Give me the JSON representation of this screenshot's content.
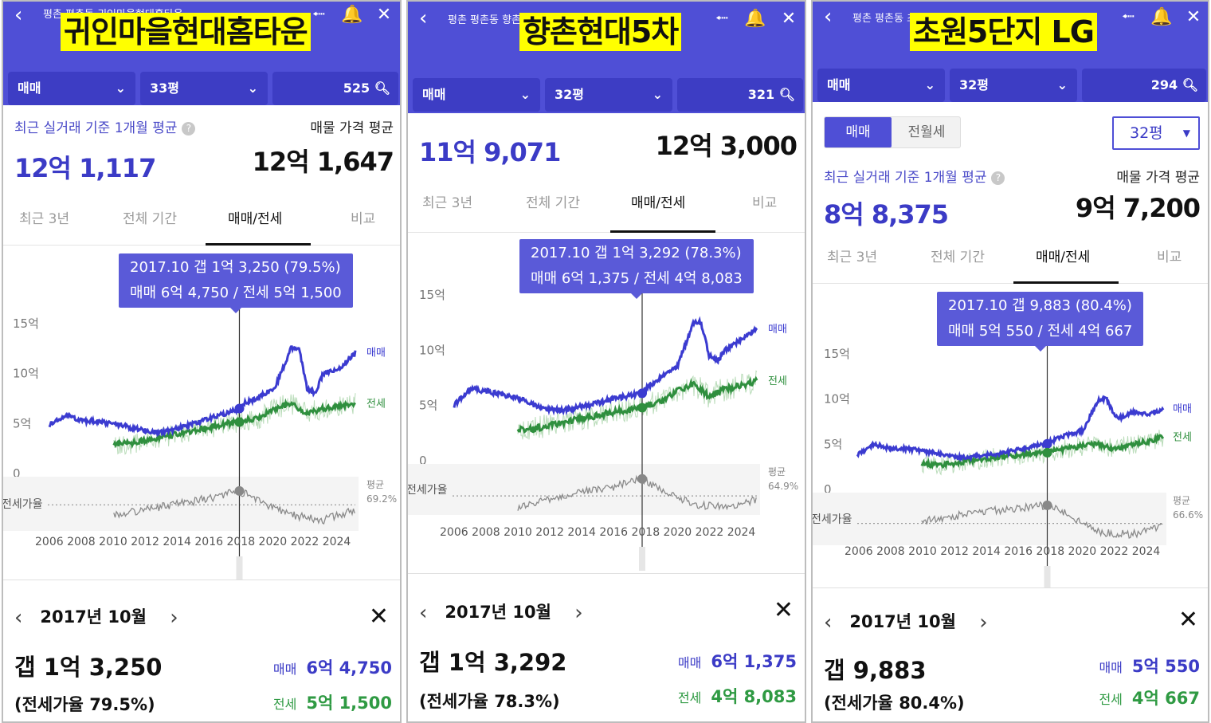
{
  "panels": [
    {
      "breadcrumb": "평촌 평촌동 귀인마을현대홈타운",
      "title": "귀인마을현대홈타운",
      "deal_type": "매매",
      "area": "33평",
      "listings": "525",
      "recent_label": "최근 실거래 기준 1개월 평균",
      "recent_value": "12억 1,117",
      "ask_label": "매물 가격 평균",
      "ask_value": "12억 1,647",
      "tabs": [
        "최근 3년",
        "전체 기간",
        "매매/전세",
        "비교"
      ],
      "tooltip_line1": "2017.10  갭 1억 3,250 (79.5%)",
      "tooltip_line2": "매매 6억 4,750 / 전세 5억 1,500",
      "y_ticks": [
        "15억",
        "10억",
        "5억",
        "0"
      ],
      "ratio_label": "전세가율",
      "series_buy": "매매",
      "series_rent": "전세",
      "avg_label": "평균",
      "avg_value": "69.2%",
      "x_ticks": "2006 2008 2010 2012 2014 2016 2018 2020 2022 2024",
      "month": "2017년 10월",
      "gap": "갭 1억 3,250",
      "gap_ratio": "(전세가율 79.5%)",
      "buy_label": "매매",
      "buy_value": "6억 4,750",
      "rent_label": "전세",
      "rent_value": "5억 1,500"
    },
    {
      "breadcrumb": "평촌 평촌동 향촌현대5차",
      "title": "향촌현대5차",
      "deal_type": "매매",
      "area": "32평",
      "listings": "321",
      "recent_value": "11억 9,071",
      "ask_value": "12억 3,000",
      "tabs": [
        "최근 3년",
        "전체 기간",
        "매매/전세",
        "비교"
      ],
      "tooltip_line1": "2017.10  갭 1억 3,292 (78.3%)",
      "tooltip_line2": "매매 6억 1,375 / 전세 4억 8,083",
      "y_ticks": [
        "15억",
        "10억",
        "5억",
        "0"
      ],
      "ratio_label": "전세가율",
      "series_buy": "매매",
      "series_rent": "전세",
      "avg_label": "평균",
      "avg_value": "64.9%",
      "x_ticks": "2006 2008 2010 2012 2014 2016 2018 2020 2022 2024",
      "month": "2017년 10월",
      "gap": "갭 1억 3,292",
      "gap_ratio": "(전세가율 78.3%)",
      "buy_label": "매매",
      "buy_value": "6억 1,375",
      "rent_label": "전세",
      "rent_value": "4억 8,083"
    },
    {
      "breadcrumb": "평촌 평촌동 초원5단지LG",
      "title": "초원5단지 LG",
      "deal_type": "매매",
      "area": "32평",
      "listings": "294",
      "seg_buy": "매매",
      "seg_rent": "전월세",
      "area_dropdown": "32평",
      "recent_label": "최근 실거래 기준 1개월 평균",
      "recent_value": "8억 8,375",
      "ask_label": "매물 가격 평균",
      "ask_value": "9억 7,200",
      "tabs": [
        "최근 3년",
        "전체 기간",
        "매매/전세",
        "비교"
      ],
      "tooltip_line1": "2017.10  갭 9,883 (80.4%)",
      "tooltip_line2": "매매 5억 550 / 전세 4억 667",
      "y_ticks": [
        "15억",
        "10억",
        "5억",
        "0"
      ],
      "ratio_label": "전세가율",
      "series_buy": "매매",
      "series_rent": "전세",
      "avg_label": "평균",
      "avg_value": "66.6%",
      "x_ticks": "2006 2008 2010 2012 2014 2016 2018 2020 2022 2024",
      "month": "2017년 10월",
      "gap": "갭 9,883",
      "gap_ratio": "(전세가율 80.4%)",
      "buy_label": "매매",
      "buy_value": "5억 550",
      "rent_label": "전세",
      "rent_value": "4억 667"
    }
  ],
  "colors": {
    "header": "#4f4fd6",
    "buy": "#3b3bd0",
    "rent": "#2f8f3e",
    "ratio": "#8a8a8a",
    "highlight": "#ffff00"
  },
  "icons": [
    "back-icon",
    "share-icon",
    "bell-icon",
    "close-icon",
    "search-icon",
    "chevron-down-icon",
    "help-icon"
  ],
  "chart_data": [
    {
      "type": "line",
      "x_range": [
        2006,
        2025
      ],
      "ylim": [
        0,
        15
      ],
      "y_unit": "억",
      "series": [
        {
          "name": "매매",
          "x": [
            2006,
            2007,
            2008,
            2009,
            2010,
            2011,
            2012,
            2013,
            2014,
            2015,
            2016,
            2017,
            2017.8,
            2018,
            2019,
            2020,
            2020.5,
            2021,
            2021.5,
            2022,
            2022.5,
            2023,
            2024,
            2025
          ],
          "values": [
            4.8,
            5.8,
            5.3,
            5.2,
            5.0,
            4.6,
            4.3,
            4.1,
            4.5,
            5.0,
            5.6,
            6.0,
            6.5,
            7.0,
            7.6,
            8.6,
            10.5,
            12.5,
            12.5,
            8.5,
            8.0,
            10.0,
            10.5,
            12.1
          ]
        },
        {
          "name": "전세",
          "x": [
            2010,
            2011,
            2012,
            2013,
            2014,
            2015,
            2016,
            2017,
            2017.8,
            2018,
            2019,
            2020,
            2021,
            2022,
            2023,
            2024,
            2025
          ],
          "values": [
            3.0,
            3.0,
            3.3,
            3.6,
            4.0,
            4.3,
            4.6,
            5.0,
            5.15,
            5.3,
            5.5,
            6.5,
            7.0,
            6.0,
            6.5,
            6.8,
            7.0
          ]
        }
      ],
      "ratio_series": {
        "name": "전세가율",
        "x": [
          2010,
          2012,
          2014,
          2016,
          2017.8,
          2019,
          2021,
          2023,
          2025
        ],
        "values": [
          62,
          66,
          70,
          74,
          79.5,
          72,
          62,
          58,
          66
        ]
      },
      "ratio_average": 69.2
    },
    {
      "type": "line",
      "x_range": [
        2006,
        2025
      ],
      "ylim": [
        0,
        15
      ],
      "y_unit": "억",
      "series": [
        {
          "name": "매매",
          "x": [
            2006,
            2007,
            2008,
            2009,
            2010,
            2011,
            2012,
            2013,
            2014,
            2015,
            2016,
            2017,
            2017.8,
            2018,
            2019,
            2020,
            2021,
            2021.5,
            2022,
            2022.5,
            2023,
            2024,
            2025
          ],
          "values": [
            5.0,
            6.5,
            6.3,
            6.0,
            5.7,
            5.0,
            4.6,
            4.6,
            4.9,
            5.2,
            5.6,
            5.9,
            6.1,
            6.5,
            7.5,
            8.5,
            12.5,
            12.5,
            9.5,
            9.0,
            10.0,
            11.0,
            11.9
          ]
        },
        {
          "name": "전세",
          "x": [
            2010,
            2011,
            2012,
            2013,
            2014,
            2015,
            2016,
            2017,
            2017.8,
            2018,
            2019,
            2020,
            2021,
            2022,
            2023,
            2024,
            2025
          ],
          "values": [
            2.8,
            2.9,
            3.2,
            3.5,
            3.8,
            4.1,
            4.4,
            4.6,
            4.8,
            5.0,
            5.3,
            6.3,
            7.0,
            5.8,
            6.5,
            6.8,
            7.2
          ]
        }
      ],
      "ratio_series": {
        "name": "전세가율",
        "x": [
          2010,
          2012,
          2014,
          2016,
          2017.8,
          2019,
          2021,
          2023,
          2025
        ],
        "values": [
          56,
          62,
          68,
          72,
          78.3,
          70,
          58,
          56,
          62
        ]
      },
      "ratio_average": 64.9
    },
    {
      "type": "line",
      "x_range": [
        2006,
        2025
      ],
      "ylim": [
        0,
        15
      ],
      "y_unit": "억",
      "series": [
        {
          "name": "매매",
          "x": [
            2006,
            2007,
            2008,
            2009,
            2010,
            2011,
            2012,
            2013,
            2014,
            2015,
            2016,
            2017,
            2017.8,
            2018,
            2019,
            2020,
            2021,
            2021.5,
            2022,
            2022.5,
            2023,
            2024,
            2025
          ],
          "values": [
            3.8,
            5.0,
            4.6,
            4.5,
            4.3,
            4.0,
            3.6,
            3.6,
            3.8,
            4.0,
            4.4,
            4.8,
            5.05,
            5.3,
            6.0,
            6.5,
            10.0,
            10.0,
            8.0,
            8.0,
            8.5,
            8.3,
            8.9
          ]
        },
        {
          "name": "전세",
          "x": [
            2010,
            2011,
            2012,
            2013,
            2014,
            2015,
            2016,
            2017,
            2017.8,
            2018,
            2019,
            2020,
            2021,
            2022,
            2023,
            2024,
            2025
          ],
          "values": [
            2.8,
            2.7,
            2.9,
            3.2,
            3.4,
            3.6,
            3.8,
            4.0,
            4.07,
            4.2,
            4.5,
            4.8,
            5.0,
            4.5,
            5.0,
            5.3,
            5.8
          ]
        }
      ],
      "ratio_series": {
        "name": "전세가율",
        "x": [
          2010,
          2012,
          2014,
          2016,
          2017.8,
          2019,
          2021,
          2023,
          2025
        ],
        "values": [
          68,
          72,
          76,
          78,
          80.4,
          74,
          60,
          58,
          64
        ]
      },
      "ratio_average": 66.6
    }
  ]
}
